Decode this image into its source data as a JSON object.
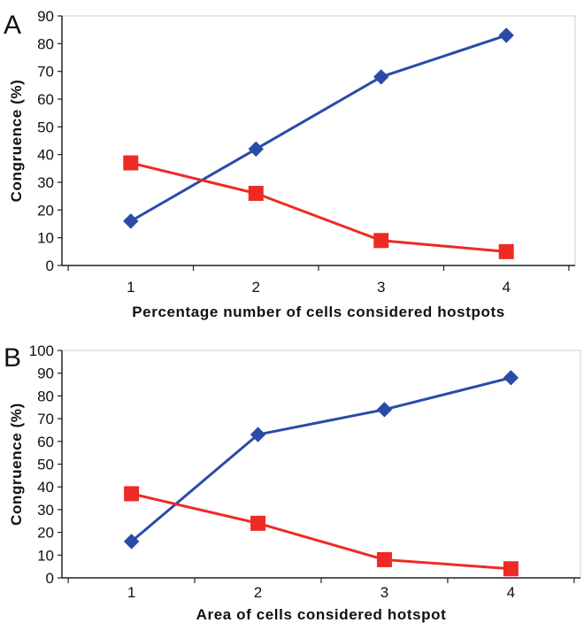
{
  "chart_data": [
    {
      "panel": "A",
      "type": "line",
      "xlabel": "Percentage number of cells considered hostpots",
      "ylabel": "Congruence (%)",
      "x": [
        1,
        2,
        3,
        4
      ],
      "ylim": [
        0,
        90
      ],
      "yticks": [
        0,
        10,
        20,
        30,
        40,
        50,
        60,
        70,
        80,
        90
      ],
      "grid": false,
      "series": [
        {
          "values": [
            16,
            42,
            68,
            83
          ],
          "color": "#2a4ba8",
          "marker": "diamond"
        },
        {
          "values": [
            37,
            26,
            9,
            5
          ],
          "color": "#ee2a24",
          "marker": "square"
        }
      ]
    },
    {
      "panel": "B",
      "type": "line",
      "xlabel": "Area of cells considered hotspot",
      "ylabel": "Congruence (%)",
      "x": [
        1,
        2,
        3,
        4
      ],
      "ylim": [
        0,
        100
      ],
      "yticks": [
        0,
        10,
        20,
        30,
        40,
        50,
        60,
        70,
        80,
        90,
        100
      ],
      "grid": false,
      "series": [
        {
          "values": [
            16,
            63,
            74,
            88
          ],
          "color": "#2a4ba8",
          "marker": "diamond"
        },
        {
          "values": [
            37,
            24,
            8,
            4
          ],
          "color": "#ee2a24",
          "marker": "square"
        }
      ]
    }
  ]
}
